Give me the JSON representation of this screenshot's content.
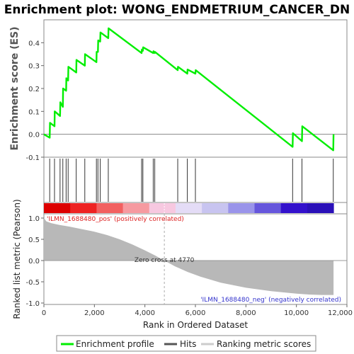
{
  "chart_data": {
    "type": "line",
    "title": "Enrichment plot: WONG_ENDMETRIUM_CANCER_DN",
    "ylabel_top": "Enrichment score (ES)",
    "ylabel_bottom": "Ranked list metric (Pearson)",
    "xlabel": "Rank in Ordered Dataset",
    "xlim": [
      0,
      12000
    ],
    "x_ticks": [
      0,
      2000,
      4000,
      6000,
      8000,
      10000,
      12000
    ],
    "x_tick_labels": [
      "0",
      "2,000",
      "4,000",
      "6,000",
      "8,000",
      "10,000",
      "12,000"
    ],
    "es_ylim": [
      -0.1,
      0.5
    ],
    "es_ticks": [
      -0.1,
      0.0,
      0.1,
      0.2,
      0.3,
      0.4
    ],
    "es_tick_labels": [
      "-0.1",
      "0.0",
      "0.1",
      "0.2",
      "0.3",
      "0.4"
    ],
    "metric_ylim": [
      -1.0,
      1.0
    ],
    "metric_ticks": [
      -1.0,
      -0.5,
      0.0,
      0.5,
      1.0
    ],
    "metric_tick_labels": [
      "-1.0",
      "-0.5",
      "0.0",
      "0.5",
      "1.0"
    ],
    "enrichment_profile": {
      "name": "Enrichment profile",
      "x": [
        0,
        230,
        240,
        420,
        430,
        640,
        650,
        750,
        760,
        880,
        890,
        960,
        970,
        1280,
        1290,
        1620,
        1630,
        2080,
        2090,
        2140,
        2150,
        2230,
        2240,
        2550,
        2560,
        3870,
        3880,
        3920,
        3930,
        4330,
        4340,
        4390,
        4400,
        5300,
        5310,
        5680,
        5690,
        6000,
        6010,
        9850,
        9860,
        10220,
        10230,
        11460,
        11470
      ],
      "y": [
        0.0,
        -0.015,
        0.05,
        0.035,
        0.1,
        0.08,
        0.14,
        0.12,
        0.2,
        0.19,
        0.245,
        0.235,
        0.295,
        0.27,
        0.325,
        0.3,
        0.35,
        0.315,
        0.36,
        0.36,
        0.41,
        0.405,
        0.445,
        0.42,
        0.463,
        0.355,
        0.37,
        0.365,
        0.38,
        0.355,
        0.363,
        0.355,
        0.36,
        0.28,
        0.295,
        0.265,
        0.283,
        0.265,
        0.28,
        -0.055,
        0.005,
        -0.03,
        0.035,
        -0.07,
        0.0
      ]
    },
    "hits": [
      230,
      420,
      640,
      750,
      880,
      960,
      1280,
      1620,
      2080,
      2140,
      2230,
      2550,
      3870,
      3920,
      4330,
      4390,
      5300,
      5680,
      6000,
      9850,
      10220,
      11460
    ],
    "zero_cross": 4770,
    "zero_cross_label": "Zero cross at 4770",
    "pos_label": "'ILMN_1688480_pos' (positively correlated)",
    "neg_label": "'ILMN_1688480_neg' (negatively correlated)",
    "metric_curve": {
      "x": [
        0,
        100,
        300,
        600,
        1000,
        1500,
        2000,
        2500,
        3000,
        3500,
        4000,
        4400,
        4770,
        5200,
        5700,
        6200,
        7000,
        8000,
        9000,
        10000,
        10500,
        11000,
        11470
      ],
      "y": [
        1.0,
        0.92,
        0.88,
        0.84,
        0.8,
        0.74,
        0.68,
        0.6,
        0.5,
        0.38,
        0.24,
        0.12,
        0.0,
        -0.14,
        -0.27,
        -0.38,
        -0.52,
        -0.64,
        -0.72,
        -0.78,
        -0.8,
        -0.81,
        -0.81
      ]
    },
    "heatmap_colors": [
      "#dd0000",
      "#ee2222",
      "#f26060",
      "#f69aa0",
      "#f7c8e0",
      "#e4dcf6",
      "#c8c4f0",
      "#9a94ea",
      "#6656dc",
      "#3311cc",
      "#2a10b8"
    ],
    "legend": [
      {
        "name": "Enrichment profile",
        "color": "#00ee00"
      },
      {
        "name": "Hits",
        "color": "#555555"
      },
      {
        "name": "Ranking metric scores",
        "color": "#cccccc"
      }
    ]
  }
}
